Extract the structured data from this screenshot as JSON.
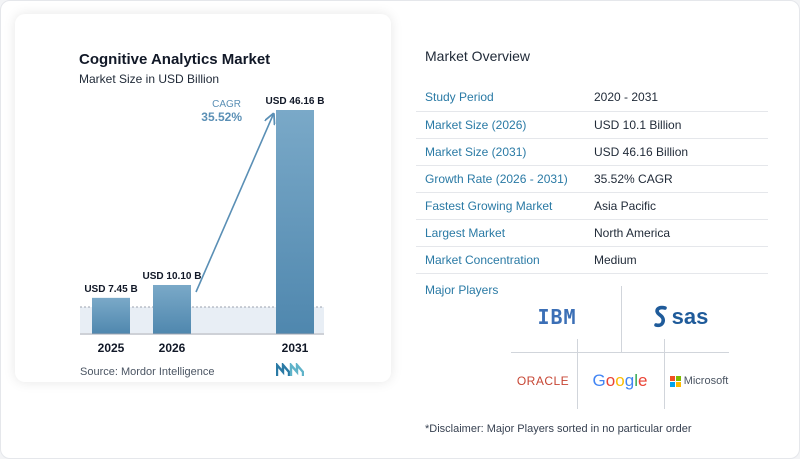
{
  "chart_data": {
    "type": "bar",
    "title": "Cognitive Analytics Market",
    "subtitle": "Market Size in USD Billion",
    "categories": [
      "2025",
      "2026",
      "2031"
    ],
    "values": [
      7.45,
      10.1,
      46.16
    ],
    "value_labels": [
      "USD 7.45 B",
      "USD 10.10 B",
      "USD 46.16 B"
    ],
    "cagr_label": "CAGR",
    "cagr_value": "35.52%",
    "colors": {
      "bar_top": "#7aa9c8",
      "bar_bottom": "#4f87ae",
      "arrow": "#5a8fb5",
      "band": "#e8eef5",
      "cagr": "#5a8fb5"
    },
    "grid": false
  },
  "source": "Source:  Mordor Intelligence",
  "overview": {
    "title": "Market Overview",
    "rows": [
      {
        "key": "Study Period",
        "value": "2020 - 2031"
      },
      {
        "key": "Market Size (2026)",
        "value": "USD 10.1 Billion"
      },
      {
        "key": "Market Size (2031)",
        "value": "USD 46.16 Billion"
      },
      {
        "key": "Growth Rate (2026 - 2031)",
        "value": "35.52% CAGR"
      },
      {
        "key": "Fastest Growing Market",
        "value": "Asia Pacific"
      },
      {
        "key": "Largest Market",
        "value": "North America"
      },
      {
        "key": "Market Concentration",
        "value": "Medium"
      }
    ]
  },
  "players": {
    "title": "Major Players",
    "ibm": "IBM",
    "sas": "sas",
    "oracle": "ORACLE",
    "google": [
      "G",
      "o",
      "o",
      "g",
      "l",
      "e"
    ],
    "microsoft": "Microsoft"
  },
  "disclaimer": "*Disclaimer: Major Players sorted in no particular order",
  "colors": {
    "accent": "#2a7aa5",
    "oracle": "#c74634",
    "ibm": "#3b6fb6",
    "sas": "#1f5b9a"
  },
  "icons": {
    "brand": "mordor-intelligence-logo",
    "sas": "sas-swirl-icon",
    "microsoft": "microsoft-squares-icon"
  }
}
